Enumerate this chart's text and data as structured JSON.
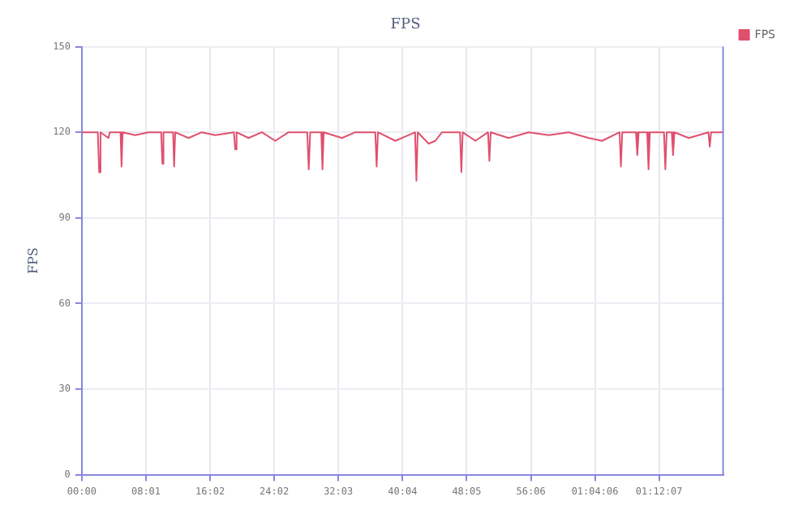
{
  "chart_data": {
    "type": "line",
    "title": "FPS",
    "ylabel": "FPS",
    "x": [
      0,
      120,
      130,
      140,
      200,
      210,
      290,
      298,
      306,
      400,
      500,
      595,
      604,
      612,
      684,
      692,
      700,
      800,
      900,
      1000,
      1140,
      1150,
      1160,
      1250,
      1350,
      1450,
      1550,
      1690,
      1701,
      1712,
      1795,
      1804,
      1813,
      1950,
      2050,
      2200,
      2210,
      2220,
      2350,
      2498,
      2508,
      2518,
      2600,
      2650,
      2700,
      2835,
      2845,
      2855,
      2950,
      3045,
      3055,
      3065,
      3200,
      3350,
      3500,
      3650,
      3800,
      3900,
      4031,
      4041,
      4051,
      4154,
      4164,
      4174,
      4238,
      4248,
      4258,
      4364,
      4374,
      4384,
      4422,
      4432,
      4442,
      4550,
      4697,
      4707,
      4717,
      4807
    ],
    "series": [
      {
        "name": "FPS",
        "color": "#e0506e",
        "values": [
          120,
          120,
          106,
          120,
          118,
          120,
          120,
          108,
          120,
          119,
          120,
          120,
          109,
          120,
          120,
          108,
          120,
          118,
          120,
          119,
          120,
          114,
          120,
          118,
          120,
          117,
          120,
          120,
          107,
          120,
          120,
          107,
          120,
          118,
          120,
          120,
          108,
          120,
          117,
          120,
          103,
          120,
          116,
          117,
          120,
          120,
          106,
          120,
          117,
          120,
          110,
          120,
          118,
          120,
          119,
          120,
          118,
          117,
          120,
          108,
          120,
          120,
          112,
          120,
          120,
          107,
          120,
          120,
          107,
          120,
          120,
          112,
          120,
          118,
          120,
          115,
          120,
          120
        ]
      }
    ],
    "xlim": [
      0,
      4807
    ],
    "xticks": [
      {
        "value": 0,
        "label": "00:00"
      },
      {
        "value": 481,
        "label": "08:01"
      },
      {
        "value": 962,
        "label": "16:02"
      },
      {
        "value": 1442,
        "label": "24:02"
      },
      {
        "value": 1923,
        "label": "32:03"
      },
      {
        "value": 2404,
        "label": "40:04"
      },
      {
        "value": 2885,
        "label": "48:05"
      },
      {
        "value": 3366,
        "label": "56:06"
      },
      {
        "value": 3846,
        "label": "01:04:06"
      },
      {
        "value": 4327,
        "label": "01:12:07"
      }
    ],
    "ylim": [
      0,
      150
    ],
    "yticks": [
      0,
      30,
      60,
      90,
      120,
      150
    ],
    "grid": true,
    "legend": "top right",
    "marker": "none",
    "line_style": "solid"
  }
}
